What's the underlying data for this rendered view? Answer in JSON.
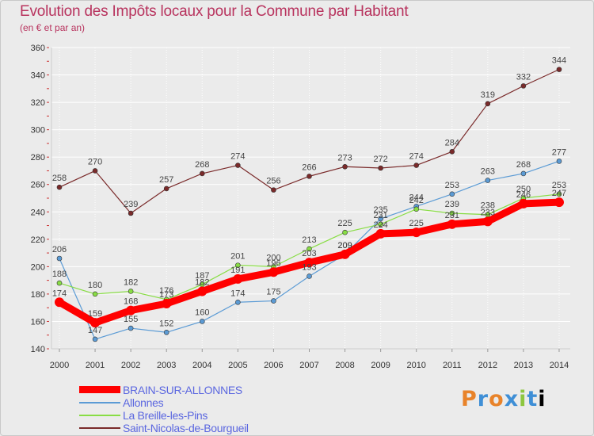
{
  "header": {
    "title": "Evolution des Impôts locaux pour la Commune par Habitant",
    "subtitle": "(en € et par an)"
  },
  "logo": {
    "letters": [
      "P",
      "r",
      "o",
      "x",
      "i",
      "t",
      "i"
    ]
  },
  "colors": {
    "title": "#b8335e",
    "grid": "#ffffff",
    "plot_bg": "#ebebeb",
    "legend_text": "#5b67e0",
    "brain": "#ff0000",
    "allonnes": "#5b9bd5",
    "breille": "#88dd44",
    "saint_nicolas": "#7a2a2a"
  },
  "chart_data": {
    "type": "line",
    "title": "Evolution des Impôts locaux pour la Commune par Habitant",
    "ylabel": "(en € et par an)",
    "xlabel": "",
    "categories": [
      "2000",
      "2001",
      "2002",
      "2003",
      "2004",
      "2005",
      "2006",
      "2007",
      "2008",
      "2009",
      "2010",
      "2011",
      "2012",
      "2013",
      "2014"
    ],
    "ylim": [
      140,
      360
    ],
    "yticks": [
      140,
      160,
      180,
      200,
      220,
      240,
      260,
      280,
      300,
      320,
      340,
      360
    ],
    "grid": true,
    "legend_position": "bottom-left",
    "series": [
      {
        "name": "Saint-Nicolas-de-Bourgueil",
        "color": "#7a2a2a",
        "width": 1.2,
        "values": [
          258,
          270,
          239,
          257,
          268,
          274,
          256,
          266,
          273,
          272,
          274,
          284,
          319,
          332,
          344
        ]
      },
      {
        "name": "Allonnes",
        "color": "#5b9bd5",
        "width": 1.2,
        "values": [
          206,
          147,
          155,
          152,
          160,
          174,
          175,
          193,
          209,
          235,
          244,
          253,
          263,
          268,
          277
        ]
      },
      {
        "name": "La Breille-les-Pins",
        "color": "#88dd44",
        "width": 1.2,
        "values": [
          188,
          180,
          182,
          176,
          187,
          201,
          200,
          213,
          225,
          231,
          242,
          239,
          238,
          250,
          253
        ]
      },
      {
        "name": "BRAIN-SUR-ALLONNES",
        "color": "#ff0000",
        "width": 9,
        "values": [
          174,
          159,
          168,
          173,
          182,
          191,
          196,
          203,
          209,
          224,
          225,
          231,
          233,
          246,
          247
        ]
      }
    ],
    "labels": [
      {
        "series": "Saint-Nicolas-de-Bourgueil",
        "text": [
          "258",
          "270",
          "239",
          "257",
          "268",
          "274",
          "256",
          "266",
          "273",
          "272",
          "274",
          "284",
          "319",
          "332",
          "344"
        ]
      },
      {
        "series": "Allonnes",
        "text": [
          "206",
          "147",
          "155",
          "152",
          "160",
          "174",
          "175",
          "193",
          "209",
          "235",
          "244",
          "253",
          "263",
          "268",
          "277"
        ]
      },
      {
        "series": "La Breille-les-Pins",
        "text": [
          "188",
          "180",
          "182",
          "176",
          "187",
          "201",
          "200",
          "213",
          "225",
          "231",
          "242",
          "239",
          "238",
          "250",
          "253"
        ]
      },
      {
        "series": "BRAIN-SUR-ALLONNES",
        "text": [
          "174",
          "159",
          "168",
          "173",
          "182",
          "191",
          "196",
          "203",
          "209",
          "224",
          "225",
          "231",
          "233",
          "246",
          "247"
        ]
      }
    ]
  },
  "legend": {
    "items": [
      {
        "label": "BRAIN-SUR-ALLONNES",
        "color": "#ff0000",
        "thickness": 9
      },
      {
        "label": "Allonnes",
        "color": "#5b9bd5",
        "thickness": 2
      },
      {
        "label": "La Breille-les-Pins",
        "color": "#88dd44",
        "thickness": 2
      },
      {
        "label": "Saint-Nicolas-de-Bourgueil",
        "color": "#7a2a2a",
        "thickness": 2
      }
    ]
  }
}
